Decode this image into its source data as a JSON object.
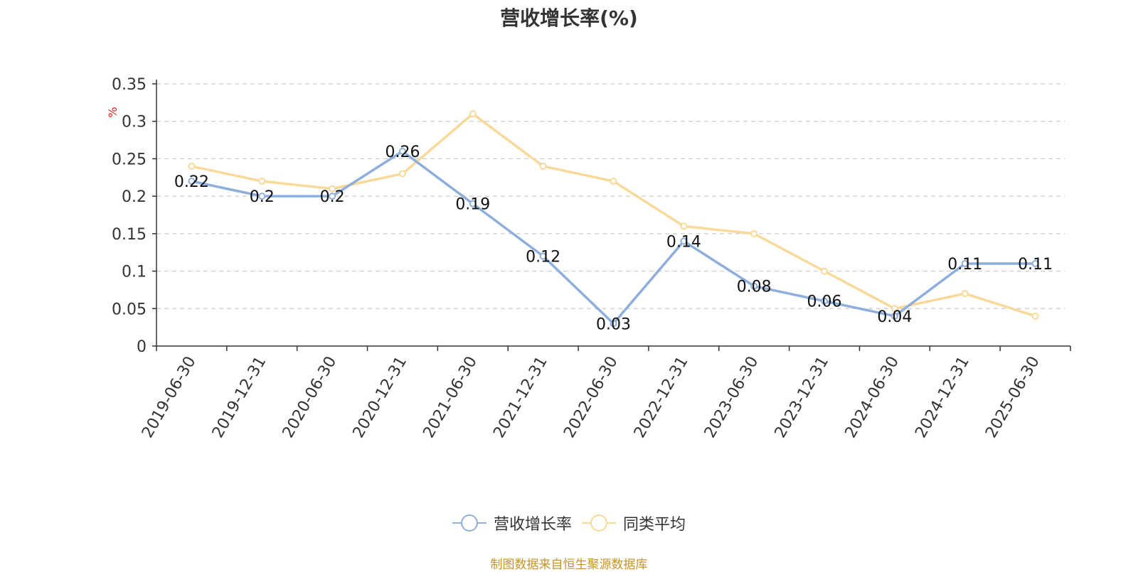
{
  "title": "营收增长率(%)",
  "source_note": "制图数据来自恒生聚源数据库",
  "source_color": "#c8922a",
  "chart_data": {
    "type": "line",
    "title": "营收增长率(%)",
    "ylabel": "%",
    "ylim": [
      0,
      0.35
    ],
    "yticks": [
      "0",
      "0.05",
      "0.1",
      "0.15",
      "0.2",
      "0.25",
      "0.3",
      "0.35"
    ],
    "grid": true,
    "legend_position": "bottom",
    "categories": [
      "2019-06-30",
      "2019-12-31",
      "2020-06-30",
      "2020-12-31",
      "2021-06-30",
      "2021-12-31",
      "2022-06-30",
      "2022-12-31",
      "2023-06-30",
      "2023-12-31",
      "2024-06-30",
      "2024-12-31",
      "2025-06-30"
    ],
    "series": [
      {
        "name": "营收增长率",
        "color": "#8eaedb",
        "values": [
          0.22,
          0.2,
          0.2,
          0.26,
          0.19,
          0.12,
          0.03,
          0.14,
          0.08,
          0.06,
          0.04,
          0.11,
          0.11
        ],
        "labels": [
          "0.22",
          "0.2",
          "0.2",
          "0.26",
          "0.19",
          "0.12",
          "0.03",
          "0.14",
          "0.08",
          "0.06",
          "0.04",
          "0.11",
          "0.11"
        ]
      },
      {
        "name": "同类平均",
        "color": "#f9d99a",
        "values": [
          0.24,
          0.22,
          0.21,
          0.23,
          0.31,
          0.24,
          0.22,
          0.16,
          0.15,
          0.1,
          0.05,
          0.07,
          0.04
        ]
      }
    ]
  }
}
